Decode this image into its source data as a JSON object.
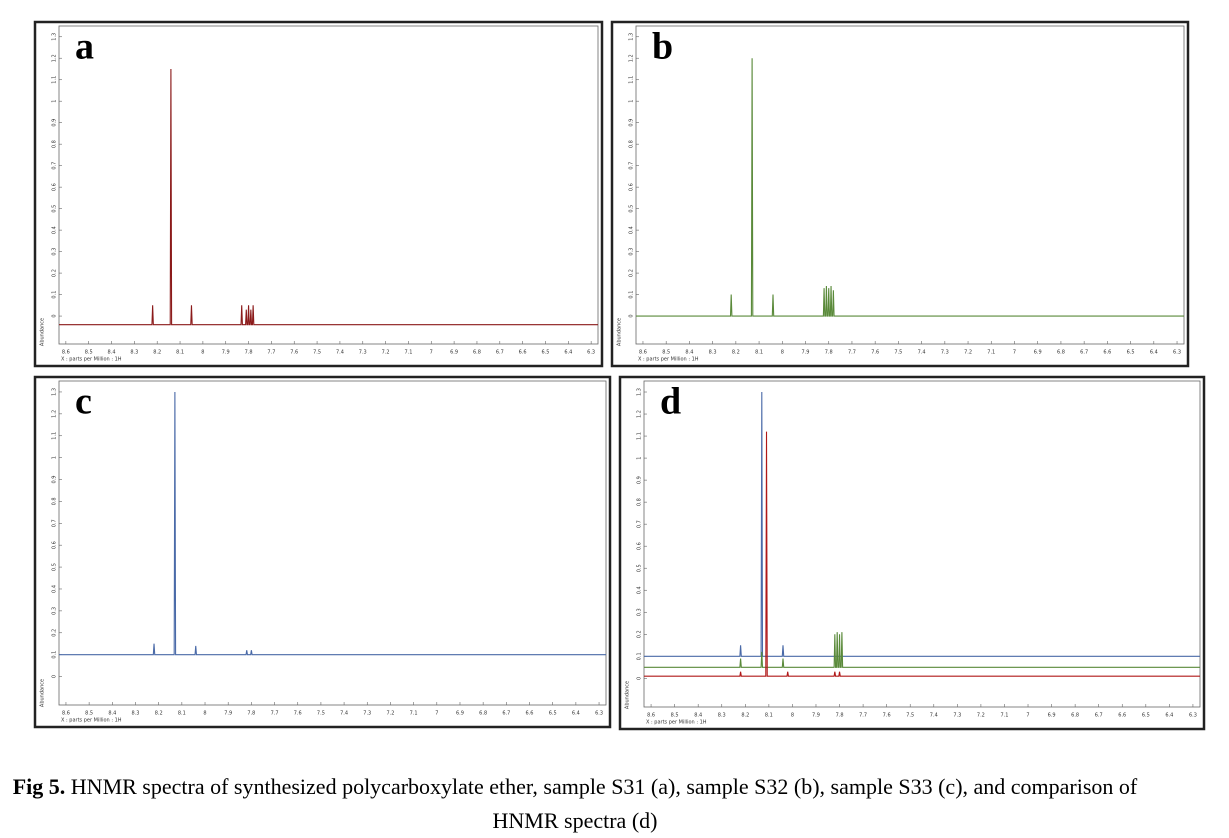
{
  "chart_data": [
    {
      "type": "line",
      "label": "a",
      "xlabel": "X : parts per Million : 1H",
      "ylabel": "Abundance",
      "xlim": [
        8.63,
        6.27
      ],
      "xticks": [
        8.6,
        8.5,
        8.4,
        8.3,
        8.2,
        8.1,
        8.0,
        7.9,
        7.8,
        7.7,
        7.6,
        7.5,
        7.4,
        7.3,
        7.2,
        7.1,
        7.0,
        6.9,
        6.8,
        6.7,
        6.6,
        6.5,
        6.4,
        6.3
      ],
      "ylim": [
        -0.13,
        1.35
      ],
      "yticks": [
        0,
        0.1,
        0.2,
        0.3,
        0.4,
        0.5,
        0.6,
        0.7,
        0.8,
        0.9,
        1.0,
        1.1,
        1.2,
        1.3
      ],
      "series": [
        {
          "color": "#8b1a1a",
          "x": [
            8.63,
            8.223,
            8.22,
            8.217,
            8.143,
            8.14,
            8.137,
            8.053,
            8.05,
            8.047,
            7.833,
            7.83,
            7.827,
            7.813,
            7.81,
            7.807,
            7.803,
            7.8,
            7.797,
            7.793,
            7.79,
            7.787,
            7.783,
            7.78,
            7.777,
            6.27
          ],
          "values": [
            -0.04,
            -0.04,
            0.05,
            -0.04,
            -0.04,
            1.15,
            -0.04,
            -0.04,
            0.05,
            -0.04,
            -0.04,
            0.05,
            -0.04,
            -0.04,
            0.03,
            -0.04,
            -0.04,
            0.05,
            -0.04,
            -0.04,
            0.03,
            -0.04,
            -0.04,
            0.05,
            -0.04,
            -0.04
          ]
        }
      ]
    },
    {
      "type": "line",
      "label": "b",
      "xlabel": "X : parts per Million : 1H",
      "ylabel": "Abundance",
      "xlim": [
        8.63,
        6.27
      ],
      "xticks": [
        8.6,
        8.5,
        8.4,
        8.3,
        8.2,
        8.1,
        8.0,
        7.9,
        7.8,
        7.7,
        7.6,
        7.5,
        7.4,
        7.3,
        7.2,
        7.1,
        7.0,
        6.9,
        6.8,
        6.7,
        6.6,
        6.5,
        6.4,
        6.3
      ],
      "ylim": [
        -0.13,
        1.35
      ],
      "yticks": [
        0,
        0.1,
        0.2,
        0.3,
        0.4,
        0.5,
        0.6,
        0.7,
        0.8,
        0.9,
        1.0,
        1.1,
        1.2,
        1.3
      ],
      "series": [
        {
          "color": "#5a8a3a",
          "x": [
            8.63,
            8.223,
            8.22,
            8.217,
            8.133,
            8.13,
            8.127,
            8.043,
            8.04,
            8.037,
            7.823,
            7.82,
            7.817,
            7.813,
            7.81,
            7.807,
            7.803,
            7.8,
            7.797,
            7.793,
            7.79,
            7.787,
            7.783,
            7.78,
            7.777,
            6.27
          ],
          "values": [
            0,
            0,
            0.1,
            0,
            0,
            1.2,
            0,
            0,
            0.1,
            0,
            0,
            0.13,
            0,
            0,
            0.14,
            0,
            0,
            0.13,
            0,
            0,
            0.14,
            0,
            0,
            0.12,
            0,
            0
          ]
        }
      ]
    },
    {
      "type": "line",
      "label": "c",
      "xlabel": "X : parts per Million : 1H",
      "ylabel": "Abundance",
      "xlim": [
        8.63,
        6.27
      ],
      "xticks": [
        8.6,
        8.5,
        8.4,
        8.3,
        8.2,
        8.1,
        8.0,
        7.9,
        7.8,
        7.7,
        7.6,
        7.5,
        7.4,
        7.3,
        7.2,
        7.1,
        7.0,
        6.9,
        6.8,
        6.7,
        6.6,
        6.5,
        6.4,
        6.3
      ],
      "ylim": [
        -0.13,
        1.35
      ],
      "yticks": [
        0,
        0.1,
        0.2,
        0.3,
        0.4,
        0.5,
        0.6,
        0.7,
        0.8,
        0.9,
        1.0,
        1.1,
        1.2,
        1.3
      ],
      "series": [
        {
          "color": "#4a6aa8",
          "x": [
            8.63,
            8.223,
            8.22,
            8.217,
            8.133,
            8.13,
            8.127,
            8.043,
            8.04,
            8.037,
            7.823,
            7.82,
            7.817,
            7.803,
            7.8,
            7.797,
            6.27
          ],
          "values": [
            0.1,
            0.1,
            0.15,
            0.1,
            0.1,
            1.3,
            0.1,
            0.1,
            0.14,
            0.1,
            0.1,
            0.12,
            0.1,
            0.1,
            0.12,
            0.1,
            0.1
          ]
        }
      ]
    },
    {
      "type": "line",
      "label": "d",
      "xlabel": "X : parts per Million : 1H",
      "ylabel": "Abundance",
      "xlim": [
        8.63,
        6.27
      ],
      "xticks": [
        8.6,
        8.5,
        8.4,
        8.3,
        8.2,
        8.1,
        8.0,
        7.9,
        7.8,
        7.7,
        7.6,
        7.5,
        7.4,
        7.3,
        7.2,
        7.1,
        7.0,
        6.9,
        6.8,
        6.7,
        6.6,
        6.5,
        6.4,
        6.3
      ],
      "ylim": [
        -0.13,
        1.35
      ],
      "yticks": [
        0,
        0.1,
        0.2,
        0.3,
        0.4,
        0.5,
        0.6,
        0.7,
        0.8,
        0.9,
        1.0,
        1.1,
        1.2,
        1.3
      ],
      "series": [
        {
          "color": "#4a6aa8",
          "x": [
            8.63,
            8.223,
            8.22,
            8.217,
            8.133,
            8.13,
            8.127,
            8.043,
            8.04,
            8.037,
            6.27
          ],
          "values": [
            0.1,
            0.1,
            0.15,
            0.1,
            0.1,
            1.3,
            0.1,
            0.1,
            0.15,
            0.1,
            0.1
          ]
        },
        {
          "color": "#5a8a3a",
          "x": [
            8.63,
            8.223,
            8.22,
            8.217,
            8.133,
            8.13,
            8.127,
            8.043,
            8.04,
            8.037,
            7.823,
            7.82,
            7.817,
            7.813,
            7.81,
            7.807,
            7.803,
            7.8,
            7.797,
            7.793,
            7.79,
            7.787,
            6.27
          ],
          "values": [
            0.05,
            0.05,
            0.09,
            0.05,
            0.05,
            0.12,
            0.05,
            0.05,
            0.09,
            0.05,
            0.05,
            0.2,
            0.05,
            0.05,
            0.21,
            0.05,
            0.05,
            0.2,
            0.05,
            0.05,
            0.21,
            0.05,
            0.05
          ]
        },
        {
          "color": "#b01818",
          "x": [
            8.63,
            8.223,
            8.22,
            8.217,
            8.113,
            8.11,
            8.107,
            8.023,
            8.02,
            8.017,
            7.823,
            7.82,
            7.817,
            7.803,
            7.8,
            7.797,
            6.27
          ],
          "values": [
            0.01,
            0.01,
            0.03,
            0.01,
            0.01,
            1.12,
            0.01,
            0.01,
            0.03,
            0.01,
            0.01,
            0.03,
            0.01,
            0.01,
            0.03,
            0.01,
            0.01
          ]
        }
      ]
    }
  ],
  "caption": {
    "label": "Fig 5.",
    "text": "HNMR spectra of synthesized polycarboxylate ether, sample S31 (a), sample S32 (b), sample S33 (c), and comparison of HNMR spectra (d)"
  }
}
